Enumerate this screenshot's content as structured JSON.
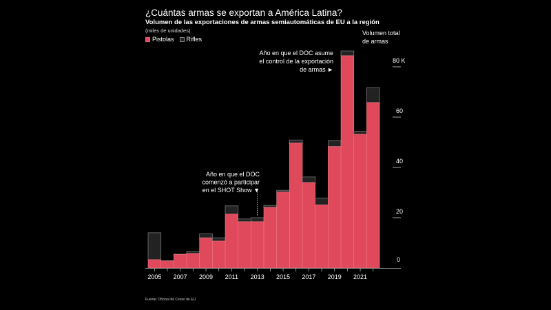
{
  "chart_data": {
    "type": "bar",
    "stacked": true,
    "title": "¿Cuántas armas se exportan a América Latina?",
    "subtitle": "Volumen de las exportaciones de armas semiautomáticas de EU a la región",
    "units": "(miles de unidades)",
    "ylabel": "Volumen total de armas",
    "xlabel": "",
    "ylim": [
      0,
      80
    ],
    "yticks": [
      {
        "value": 0,
        "label": "0"
      },
      {
        "value": 20,
        "label": "20"
      },
      {
        "value": 40,
        "label": "40"
      },
      {
        "value": 60,
        "label": "60"
      },
      {
        "value": 80,
        "label": "80 K"
      }
    ],
    "categories": [
      "2005",
      "2006",
      "2007",
      "2008",
      "2009",
      "2010",
      "2011",
      "2012",
      "2013",
      "2014",
      "2015",
      "2016",
      "2017",
      "2018",
      "2019",
      "2020",
      "2021",
      "2022"
    ],
    "xtick_labels": [
      "2005",
      "2007",
      "2009",
      "2011",
      "2013",
      "2015",
      "2017",
      "2019",
      "2021"
    ],
    "series": [
      {
        "name": "Pistolas",
        "color": "#e0485c",
        "values": [
          3.3,
          2.8,
          5.4,
          5.8,
          12.0,
          10.7,
          21.4,
          18.4,
          18.4,
          24.1,
          30.2,
          49.7,
          34.0,
          25.1,
          48.3,
          84.4,
          53.2,
          65.8
        ]
      },
      {
        "name": "Rifles",
        "color": "#222222",
        "values": [
          10.7,
          0.1,
          0.1,
          0.7,
          1.6,
          1.3,
          3.3,
          1.1,
          1.6,
          0.8,
          0.7,
          1.2,
          2.2,
          2.7,
          2.4,
          1.9,
          1.2,
          5.9
        ]
      }
    ],
    "legend": {
      "position": "top-left",
      "entries": [
        "Pistolas",
        "Rifles"
      ]
    },
    "grid": false,
    "annotations": [
      {
        "category": "2013",
        "lines": [
          "Año en que el DOC",
          "comenzó a participar",
          "en el SHOT Show ▼"
        ]
      },
      {
        "category": "2020",
        "lines": [
          "Año en que el DOC asume",
          "el control de la exportación",
          "de armas ►"
        ]
      }
    ],
    "source": "Fuente: Oficina del Censo de EU"
  }
}
